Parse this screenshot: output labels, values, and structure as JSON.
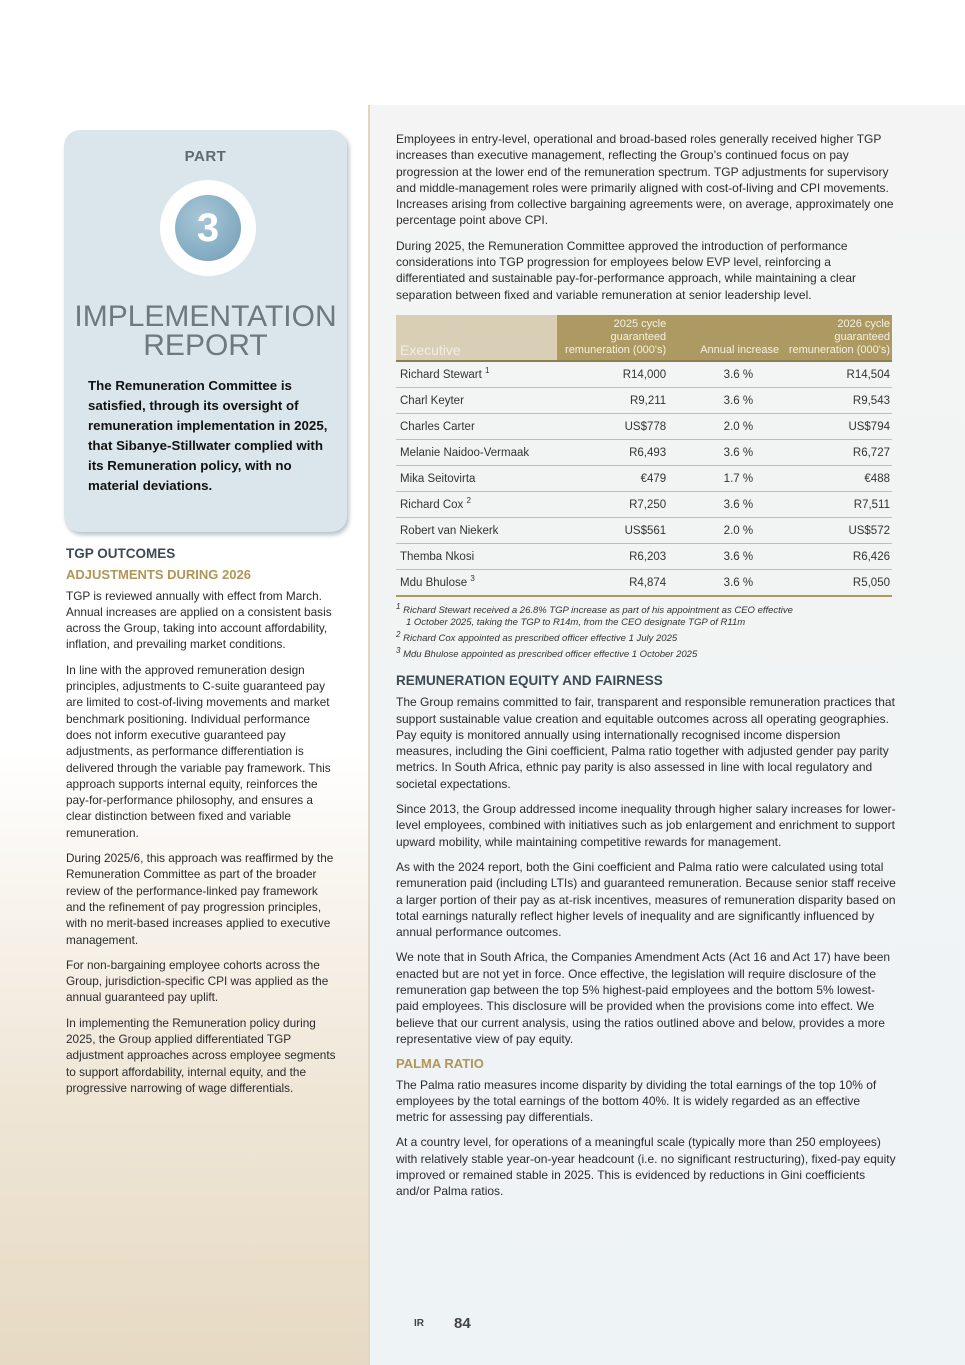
{
  "card": {
    "part": "PART",
    "number": "3",
    "title_line1": "IMPLEMENTATION",
    "title_line2": "REPORT",
    "intro": "The Remuneration Committee is satisfied, through its oversight of remuneration implementation in 2025, that Sibanye-Stillwater complied with its Remuneration policy, with no material deviations."
  },
  "left": {
    "heading": "TGP OUTCOMES",
    "subheading": "ADJUSTMENTS DURING 2026",
    "paragraphs": [
      "TGP is reviewed annually with effect from March. Annual increases are applied on a consistent basis across the Group, taking into account affordability, inflation, and prevailing market conditions.",
      "In line with the approved remuneration design principles, adjustments to C-suite guaranteed pay are limited to cost-of-living movements and market benchmark positioning. Individual performance does not inform executive guaranteed pay adjustments, as performance differentiation is delivered through the variable pay framework. This approach supports internal equity, reinforces the pay-for-performance philosophy, and ensures a clear distinction between fixed and variable remuneration.",
      "During 2025/6, this approach was reaffirmed by the Remuneration Committee as part of the broader review of the performance-linked pay framework and the refinement of pay progression principles, with no merit-based increases applied to executive management.",
      "For non-bargaining employee cohorts across the Group, jurisdiction-specific CPI was applied as the annual guaranteed pay uplift.",
      "In implementing the Remuneration policy during 2025, the Group applied differentiated TGP adjustment approaches across employee segments to support affordability, internal equity, and the progressive narrowing of wage differentials."
    ]
  },
  "right": {
    "paragraphs": [
      "Employees in entry-level, operational and broad-based roles generally received higher TGP increases than executive management, reflecting the Group’s continued focus on pay progression at the lower end of the remuneration spectrum. TGP adjustments for supervisory and middle-management roles were primarily aligned with cost-of-living and CPI movements. Increases arising from collective bargaining agreements were, on average, approximately one percentage point above CPI.",
      "During 2025, the Remuneration Committee approved the introduction of performance considerations into TGP progression for employees below EVP level, reinforcing a differentiated and sustainable pay-for-performance approach, while maintaining a clear separation between fixed and variable remuneration at senior leadership level."
    ],
    "table": {
      "headers": [
        "Executive",
        "2025 cycle guaranteed remuneration (000's)",
        "Annual increase",
        "2026 cycle guaranteed remuneration (000's)"
      ],
      "rows": [
        {
          "name": "Richard Stewart",
          "sup": "1",
          "v2025": "R14,000",
          "inc": "3.6 %",
          "v2026": "R14,504"
        },
        {
          "name": "Charl Keyter",
          "sup": "",
          "v2025": "R9,211",
          "inc": "3.6 %",
          "v2026": "R9,543"
        },
        {
          "name": "Charles Carter",
          "sup": "",
          "v2025": "US$778",
          "inc": "2.0 %",
          "v2026": "US$794"
        },
        {
          "name": "Melanie Naidoo-Vermaak",
          "sup": "",
          "v2025": "R6,493",
          "inc": "3.6 %",
          "v2026": "R6,727"
        },
        {
          "name": "Mika Seitovirta",
          "sup": "",
          "v2025": "€479",
          "inc": "1.7 %",
          "v2026": "€488"
        },
        {
          "name": "Richard Cox",
          "sup": "2",
          "v2025": "R7,250",
          "inc": "3.6 %",
          "v2026": "R7,511"
        },
        {
          "name": "Robert van Niekerk",
          "sup": "",
          "v2025": "US$561",
          "inc": "2.0 %",
          "v2026": "US$572"
        },
        {
          "name": "Themba Nkosi",
          "sup": "",
          "v2025": "R6,203",
          "inc": "3.6 %",
          "v2026": "R6,426"
        },
        {
          "name": "Mdu Bhulose",
          "sup": "3",
          "v2025": "R4,874",
          "inc": "3.6 %",
          "v2026": "R5,050"
        }
      ]
    },
    "footnotes": [
      {
        "mark": "1",
        "line1": "Richard Stewart received a 26.8% TGP increase as part of his appointment as CEO effective",
        "line2": "1 October 2025, taking the TGP to R14m, from the CEO designate TGP of R11m"
      },
      {
        "mark": "2",
        "line1": "Richard Cox appointed as prescribed officer effective 1 July 2025"
      },
      {
        "mark": "3",
        "line1": "Mdu Bhulose appointed as prescribed officer effective 1 October 2025"
      }
    ],
    "equity_heading": "REMUNERATION EQUITY AND FAIRNESS",
    "equity_paragraphs": [
      "The Group remains committed to fair, transparent and responsible remuneration practices that support sustainable value creation and equitable outcomes across all operating geographies. Pay equity is monitored annually using internationally recognised income dispersion measures, including the Gini coefficient, Palma ratio together with adjusted gender pay parity metrics. In South Africa, ethnic pay parity is also assessed in line with local regulatory and societal expectations.",
      "Since 2013, the Group addressed income inequality through higher salary increases for lower-level employees, combined with initiatives such as job enlargement and enrichment to support upward mobility, while maintaining competitive rewards for management.",
      "As with the 2024 report, both the Gini coefficient and Palma ratio were calculated using total remuneration paid (including LTIs) and guaranteed remuneration. Because senior staff receive a larger portion of their pay as at-risk incentives, measures of remuneration disparity based on total earnings naturally reflect higher levels of inequality and are significantly influenced by annual performance outcomes.",
      "We note that in South Africa, the Companies Amendment Acts (Act 16 and Act 17) have been enacted but are not yet in force. Once effective, the legislation will require disclosure of the remuneration gap between the top 5% highest-paid employees and the bottom 5% lowest-paid employees. This disclosure will be provided when the provisions come into effect. We believe that our current analysis, using the ratios outlined above and below, provides a more representative view of pay equity."
    ],
    "palma_heading": "PALMA RATIO",
    "palma_paragraphs": [
      "The Palma ratio measures income disparity by dividing the total earnings of the top 10% of employees by the total earnings of the bottom 40%. It is widely regarded as an effective metric for assessing pay differentials.",
      "At a country level, for operations of a meaningful scale (typically more than 250 employees) with relatively stable year-on-year headcount (i.e. no significant restructuring), fixed-pay equity improved or remained stable in 2025. This is evidenced by reductions in Gini coefficients and/or Palma ratios."
    ]
  },
  "footer": {
    "section": "IR",
    "page": "84"
  }
}
